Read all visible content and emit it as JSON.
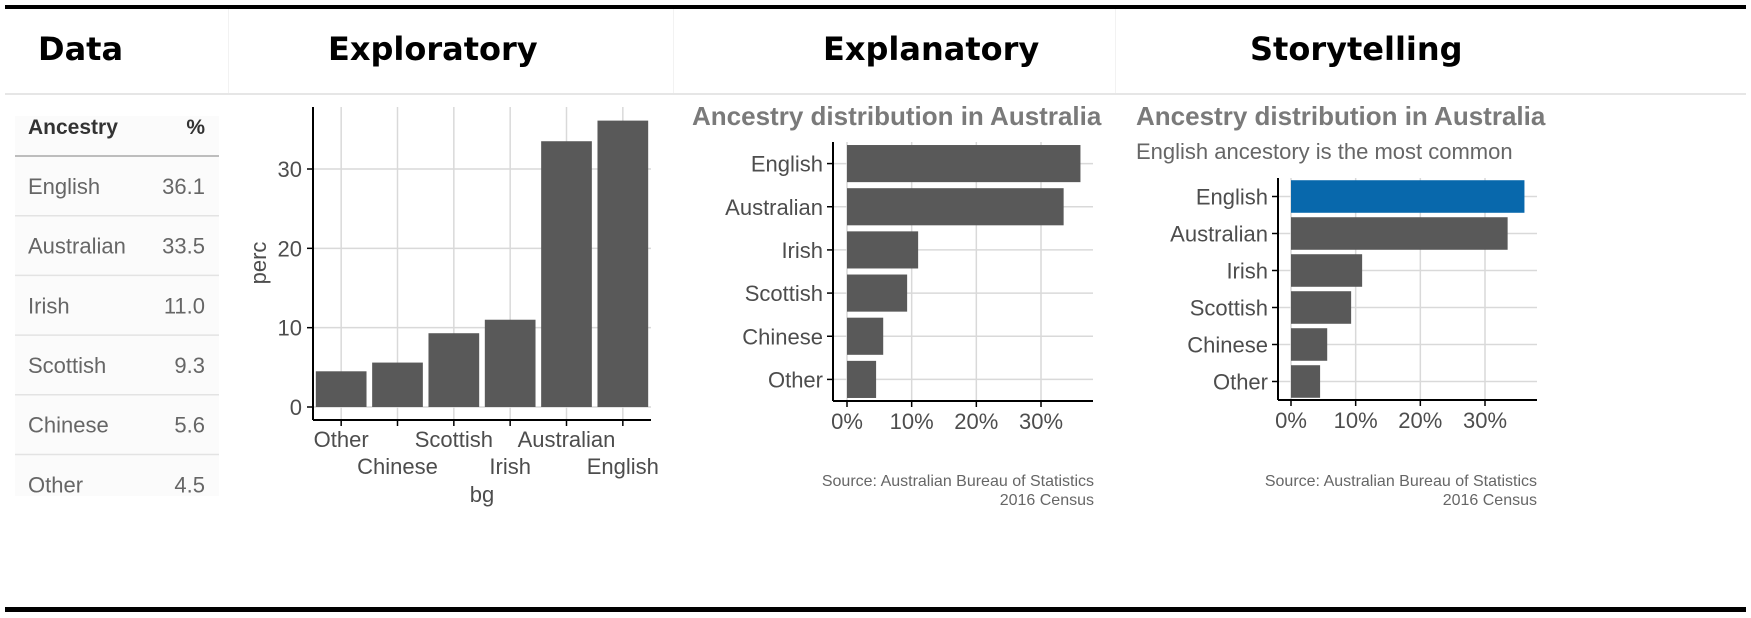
{
  "headers": [
    "Data",
    "Exploratory",
    "Explanatory",
    "Storytelling"
  ],
  "colors": {
    "bar": "#595959",
    "highlight": "#0868ac",
    "grid": "#d9d9d9",
    "axis": "#000000",
    "text": "#4d4d4d"
  },
  "data_table": {
    "col_labels": [
      "Ancestry",
      "%"
    ],
    "rows": [
      {
        "ancestry": "English",
        "pct": "36.1"
      },
      {
        "ancestry": "Australian",
        "pct": "33.5"
      },
      {
        "ancestry": "Irish",
        "pct": "11.0"
      },
      {
        "ancestry": "Scottish",
        "pct": "9.3"
      },
      {
        "ancestry": "Chinese",
        "pct": "5.6"
      },
      {
        "ancestry": "Other",
        "pct": "4.5"
      }
    ]
  },
  "chart_data": [
    {
      "type": "bar",
      "orientation": "vertical",
      "categories": [
        "Other",
        "Chinese",
        "Scottish",
        "Irish",
        "Australian",
        "English"
      ],
      "values": [
        4.5,
        5.6,
        9.3,
        11.0,
        33.5,
        36.1
      ],
      "xlabel": "bg",
      "ylabel": "perc",
      "yticks": [
        "0",
        "10",
        "20",
        "30"
      ],
      "ylim": [
        0,
        37
      ],
      "grid": true
    },
    {
      "type": "bar",
      "orientation": "horizontal",
      "title": "Ancestry distribution in Australia",
      "categories": [
        "English",
        "Australian",
        "Irish",
        "Scottish",
        "Chinese",
        "Other"
      ],
      "values": [
        36.1,
        33.5,
        11.0,
        9.3,
        5.6,
        4.5
      ],
      "xticks": [
        "0%",
        "10%",
        "20%",
        "30%"
      ],
      "xlim": [
        0,
        37
      ],
      "grid": true,
      "caption": [
        "Source: Australian Bureau of Statistics",
        "2016 Census"
      ]
    },
    {
      "type": "bar",
      "orientation": "horizontal",
      "title": "Ancestry distribution in Australia",
      "subtitle": "English ancestory is the most common",
      "categories": [
        "English",
        "Australian",
        "Irish",
        "Scottish",
        "Chinese",
        "Other"
      ],
      "values": [
        36.1,
        33.5,
        11.0,
        9.3,
        5.6,
        4.5
      ],
      "highlight": "English",
      "xticks": [
        "0%",
        "10%",
        "20%",
        "30%"
      ],
      "xlim": [
        0,
        37
      ],
      "grid": true,
      "caption": [
        "Source: Australian Bureau of Statistics",
        "2016 Census"
      ]
    }
  ]
}
